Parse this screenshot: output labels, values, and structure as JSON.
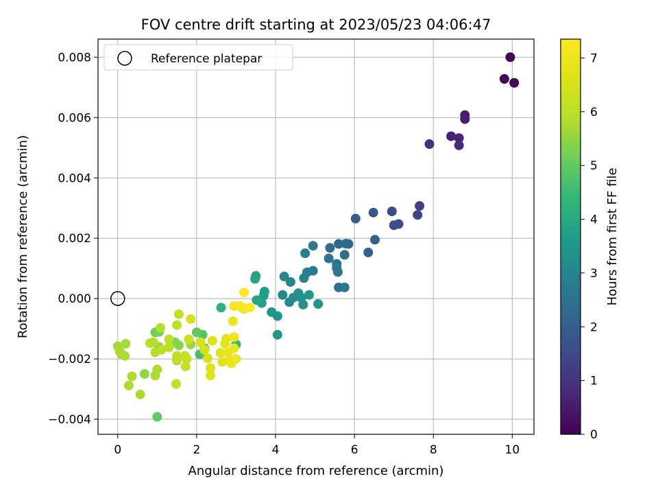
{
  "chart_data": {
    "type": "scatter",
    "title": "FOV centre drift starting at 2023/05/23 04:06:47",
    "xlabel": "Angular distance from reference (arcmin)",
    "ylabel": "Rotation from reference (arcmin)",
    "xlim": [
      -0.5,
      10.55
    ],
    "ylim": [
      -0.0045,
      0.0086
    ],
    "xticks": [
      0,
      2,
      4,
      6,
      8,
      10
    ],
    "xtick_labels": [
      "0",
      "2",
      "4",
      "6",
      "8",
      "10"
    ],
    "yticks": [
      -0.004,
      -0.002,
      0,
      0.002,
      0.004,
      0.006,
      0.008
    ],
    "ytick_labels": [
      "−0.004",
      "−0.002",
      "0.000",
      "0.002",
      "0.004",
      "0.006",
      "0.008"
    ],
    "grid": true,
    "legend": {
      "position": "top-left",
      "entries": [
        {
          "label": "Reference platepar",
          "marker": "open-circle"
        }
      ]
    },
    "reference_point": {
      "x": 0,
      "y": 0
    },
    "colorbar": {
      "label": "Hours from first FF file",
      "colormap": "viridis",
      "range": [
        0,
        7.35
      ],
      "ticks": [
        0,
        1,
        2,
        3,
        4,
        5,
        6,
        7
      ],
      "tick_labels": [
        "0",
        "1",
        "2",
        "3",
        "4",
        "5",
        "6",
        "7"
      ]
    },
    "points": [
      {
        "x": 9.95,
        "y": 0.008,
        "c": 0.05
      },
      {
        "x": 9.8,
        "y": 0.00728,
        "c": 0.1
      },
      {
        "x": 10.05,
        "y": 0.00715,
        "c": 0.15
      },
      {
        "x": 8.8,
        "y": 0.00608,
        "c": 0.5
      },
      {
        "x": 8.8,
        "y": 0.00595,
        "c": 0.55
      },
      {
        "x": 8.45,
        "y": 0.00538,
        "c": 0.65
      },
      {
        "x": 8.65,
        "y": 0.00532,
        "c": 0.7
      },
      {
        "x": 8.65,
        "y": 0.00508,
        "c": 0.75
      },
      {
        "x": 7.9,
        "y": 0.00512,
        "c": 0.9
      },
      {
        "x": 7.65,
        "y": 0.00307,
        "c": 1.3
      },
      {
        "x": 7.6,
        "y": 0.00277,
        "c": 1.4
      },
      {
        "x": 6.95,
        "y": 0.00289,
        "c": 1.5
      },
      {
        "x": 7.0,
        "y": 0.00243,
        "c": 1.55
      },
      {
        "x": 7.12,
        "y": 0.00247,
        "c": 1.55
      },
      {
        "x": 6.48,
        "y": 0.00285,
        "c": 1.8
      },
      {
        "x": 6.03,
        "y": 0.00265,
        "c": 2.0
      },
      {
        "x": 6.52,
        "y": 0.00195,
        "c": 2.0
      },
      {
        "x": 6.35,
        "y": 0.00153,
        "c": 2.1
      },
      {
        "x": 5.85,
        "y": 0.00181,
        "c": 2.2
      },
      {
        "x": 5.6,
        "y": 0.00181,
        "c": 2.2
      },
      {
        "x": 5.78,
        "y": 0.00182,
        "c": 2.3
      },
      {
        "x": 5.38,
        "y": 0.00168,
        "c": 2.4
      },
      {
        "x": 5.75,
        "y": 0.00145,
        "c": 2.4
      },
      {
        "x": 5.35,
        "y": 0.00133,
        "c": 2.5
      },
      {
        "x": 5.55,
        "y": 0.00115,
        "c": 2.5
      },
      {
        "x": 5.55,
        "y": 0.00101,
        "c": 2.6
      },
      {
        "x": 5.58,
        "y": 0.00088,
        "c": 2.6
      },
      {
        "x": 5.6,
        "y": 0.00037,
        "c": 2.5
      },
      {
        "x": 5.75,
        "y": 0.00037,
        "c": 2.6
      },
      {
        "x": 4.95,
        "y": 0.00175,
        "c": 2.7
      },
      {
        "x": 4.95,
        "y": 0.00092,
        "c": 2.7
      },
      {
        "x": 4.75,
        "y": 0.0015,
        "c": 2.8
      },
      {
        "x": 4.8,
        "y": 0.00087,
        "c": 2.8
      },
      {
        "x": 4.72,
        "y": 0.00068,
        "c": 2.9
      },
      {
        "x": 4.22,
        "y": 0.00073,
        "c": 3.0
      },
      {
        "x": 4.38,
        "y": 0.00055,
        "c": 3.0
      },
      {
        "x": 4.18,
        "y": 0.00012,
        "c": 3.1
      },
      {
        "x": 4.35,
        "y": -0.00012,
        "c": 3.1
      },
      {
        "x": 4.45,
        "y": 3e-05,
        "c": 3.2
      },
      {
        "x": 4.55,
        "y": 8e-05,
        "c": 3.2
      },
      {
        "x": 4.58,
        "y": 0.00018,
        "c": 3.3
      },
      {
        "x": 4.65,
        "y": 3e-05,
        "c": 3.3
      },
      {
        "x": 4.7,
        "y": -0.0002,
        "c": 3.3
      },
      {
        "x": 4.85,
        "y": 0.00012,
        "c": 3.4
      },
      {
        "x": 5.08,
        "y": -0.00018,
        "c": 3.4
      },
      {
        "x": 3.9,
        "y": -0.00045,
        "c": 3.5
      },
      {
        "x": 4.05,
        "y": -0.00058,
        "c": 3.5
      },
      {
        "x": 4.05,
        "y": -0.0012,
        "c": 3.5
      },
      {
        "x": 3.72,
        "y": 0.00023,
        "c": 3.7
      },
      {
        "x": 3.7,
        "y": 0.0001,
        "c": 3.7
      },
      {
        "x": 3.65,
        "y": -0.00015,
        "c": 3.8
      },
      {
        "x": 3.5,
        "y": 0.00075,
        "c": 3.8
      },
      {
        "x": 3.48,
        "y": 0.00065,
        "c": 3.9
      },
      {
        "x": 3.52,
        "y": -5e-05,
        "c": 3.9
      },
      {
        "x": 2.62,
        "y": -0.0003,
        "c": 4.2
      },
      {
        "x": 3.0,
        "y": -0.00152,
        "c": 4.4
      },
      {
        "x": 2.08,
        "y": -0.00185,
        "c": 4.6
      },
      {
        "x": 2.2,
        "y": -0.00165,
        "c": 4.7
      },
      {
        "x": 2.15,
        "y": -0.0012,
        "c": 4.8
      },
      {
        "x": 2.0,
        "y": -0.00112,
        "c": 5.0
      },
      {
        "x": 1.0,
        "y": -0.00392,
        "c": 5.0
      },
      {
        "x": 0.95,
        "y": -0.00112,
        "c": 5.1
      },
      {
        "x": 1.05,
        "y": -0.0011,
        "c": 5.2
      },
      {
        "x": 1.5,
        "y": -0.00205,
        "c": 5.2
      },
      {
        "x": 1.45,
        "y": -0.00145,
        "c": 5.3
      },
      {
        "x": 1.55,
        "y": -0.00155,
        "c": 5.4
      },
      {
        "x": 0.68,
        "y": -0.0025,
        "c": 5.5
      },
      {
        "x": 1.05,
        "y": -0.0016,
        "c": 5.6
      },
      {
        "x": 1.85,
        "y": -0.00152,
        "c": 5.6
      },
      {
        "x": 0.2,
        "y": -0.0015,
        "c": 5.7
      },
      {
        "x": 0.0,
        "y": -0.00158,
        "c": 5.7
      },
      {
        "x": 0.05,
        "y": -0.00175,
        "c": 5.8
      },
      {
        "x": 0.1,
        "y": -0.00185,
        "c": 5.8
      },
      {
        "x": 0.18,
        "y": -0.0019,
        "c": 5.8
      },
      {
        "x": 0.28,
        "y": -0.00288,
        "c": 5.8
      },
      {
        "x": 0.36,
        "y": -0.00258,
        "c": 5.8
      },
      {
        "x": 0.57,
        "y": -0.00318,
        "c": 5.8
      },
      {
        "x": 0.95,
        "y": -0.00255,
        "c": 5.8
      },
      {
        "x": 1.0,
        "y": -0.00235,
        "c": 5.8
      },
      {
        "x": 0.82,
        "y": -0.00148,
        "c": 5.9
      },
      {
        "x": 0.9,
        "y": -0.00145,
        "c": 5.9
      },
      {
        "x": 0.95,
        "y": -0.00178,
        "c": 5.9
      },
      {
        "x": 1.08,
        "y": -0.00097,
        "c": 5.9
      },
      {
        "x": 1.1,
        "y": -0.0017,
        "c": 6.0
      },
      {
        "x": 1.3,
        "y": -0.00135,
        "c": 6.0
      },
      {
        "x": 1.3,
        "y": -0.00162,
        "c": 6.0
      },
      {
        "x": 1.5,
        "y": -0.00088,
        "c": 6.0
      },
      {
        "x": 1.5,
        "y": -0.0019,
        "c": 6.1
      },
      {
        "x": 1.5,
        "y": -0.00203,
        "c": 6.1
      },
      {
        "x": 1.48,
        "y": -0.00283,
        "c": 6.1
      },
      {
        "x": 1.55,
        "y": -0.00052,
        "c": 6.1
      },
      {
        "x": 1.7,
        "y": -0.0019,
        "c": 6.2
      },
      {
        "x": 1.75,
        "y": -0.002,
        "c": 6.2
      },
      {
        "x": 1.72,
        "y": -0.00225,
        "c": 6.2
      },
      {
        "x": 1.8,
        "y": -0.00135,
        "c": 6.3
      },
      {
        "x": 1.85,
        "y": -0.00068,
        "c": 6.5
      },
      {
        "x": 2.1,
        "y": -0.00145,
        "c": 6.4
      },
      {
        "x": 2.2,
        "y": -0.0017,
        "c": 6.5
      },
      {
        "x": 2.28,
        "y": -0.00198,
        "c": 6.5
      },
      {
        "x": 2.35,
        "y": -0.0023,
        "c": 6.6
      },
      {
        "x": 2.35,
        "y": -0.00255,
        "c": 6.6
      },
      {
        "x": 2.4,
        "y": -0.0014,
        "c": 6.6
      },
      {
        "x": 2.6,
        "y": -0.0018,
        "c": 6.7
      },
      {
        "x": 2.65,
        "y": -0.0021,
        "c": 6.7
      },
      {
        "x": 2.72,
        "y": -0.0015,
        "c": 6.8
      },
      {
        "x": 2.75,
        "y": -0.00133,
        "c": 6.8
      },
      {
        "x": 2.8,
        "y": -0.0018,
        "c": 6.9
      },
      {
        "x": 2.82,
        "y": -0.00205,
        "c": 6.9
      },
      {
        "x": 2.88,
        "y": -0.00215,
        "c": 6.9
      },
      {
        "x": 2.95,
        "y": -0.00165,
        "c": 6.9
      },
      {
        "x": 2.95,
        "y": -0.00128,
        "c": 7.0
      },
      {
        "x": 2.92,
        "y": -0.00075,
        "c": 7.0
      },
      {
        "x": 3.0,
        "y": -0.002,
        "c": 7.0
      },
      {
        "x": 2.95,
        "y": -0.00025,
        "c": 7.1
      },
      {
        "x": 3.1,
        "y": -0.00025,
        "c": 7.1
      },
      {
        "x": 3.15,
        "y": -0.0003,
        "c": 7.2
      },
      {
        "x": 3.2,
        "y": -0.00035,
        "c": 7.2
      },
      {
        "x": 3.2,
        "y": 0.0002,
        "c": 7.3
      },
      {
        "x": 3.35,
        "y": -0.0003,
        "c": 7.3
      }
    ]
  }
}
